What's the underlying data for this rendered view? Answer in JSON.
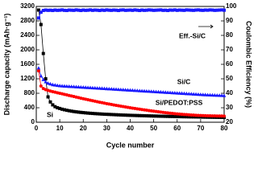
{
  "chart_data": {
    "type": "line",
    "x_label": "Cycle number",
    "y_label": "Discharge capacity (mAh·g⁻¹)",
    "y2_label": "Coulombic Efficiency (%)",
    "xlim": [
      0,
      80
    ],
    "xticks": [
      0,
      10,
      20,
      30,
      40,
      50,
      60,
      70,
      80
    ],
    "ylim": [
      0,
      3200
    ],
    "yticks": [
      0,
      400,
      800,
      1200,
      1600,
      2000,
      2400,
      2800,
      3200
    ],
    "y2lim": [
      20,
      100
    ],
    "y2ticks": [
      20,
      30,
      40,
      50,
      60,
      70,
      80,
      90,
      100
    ],
    "x": [
      1,
      2,
      3,
      4,
      5,
      6,
      7,
      8,
      9,
      10,
      11,
      12,
      13,
      14,
      15,
      16,
      17,
      18,
      19,
      20,
      21,
      22,
      23,
      24,
      25,
      26,
      27,
      28,
      29,
      30,
      31,
      32,
      33,
      34,
      35,
      36,
      37,
      38,
      39,
      40,
      41,
      42,
      43,
      44,
      45,
      46,
      47,
      48,
      49,
      50,
      51,
      52,
      53,
      54,
      55,
      56,
      57,
      58,
      59,
      60,
      61,
      62,
      63,
      64,
      65,
      66,
      67,
      68,
      69,
      70,
      71,
      72,
      73,
      74,
      75,
      76,
      77,
      78,
      79,
      80
    ],
    "series": [
      {
        "name": "Si",
        "color": "#000000",
        "marker": "square",
        "values": [
          3100,
          2700,
          1900,
          1200,
          700,
          560,
          480,
          430,
          400,
          380,
          360,
          345,
          330,
          318,
          306,
          296,
          287,
          279,
          272,
          265,
          259,
          253,
          248,
          243,
          238,
          234,
          230,
          226,
          222,
          219,
          216,
          213,
          210,
          207,
          204,
          201,
          198,
          196,
          193,
          191,
          189,
          187,
          185,
          183,
          181,
          179,
          177,
          175,
          173,
          171,
          170,
          168,
          166,
          165,
          163,
          162,
          160,
          159,
          157,
          156,
          155,
          153,
          152,
          151,
          149,
          148,
          147,
          146,
          145,
          144,
          142,
          141,
          140,
          139,
          138,
          137,
          136,
          135,
          134,
          133
        ]
      },
      {
        "name": "Si/C",
        "color": "#1a1aff",
        "marker": "triangle",
        "values": [
          1500,
          1280,
          1180,
          1120,
          1080,
          1060,
          1040,
          1030,
          1020,
          1010,
          1005,
          1001,
          997,
          993,
          989,
          985,
          981,
          977,
          973,
          969,
          965,
          961,
          957,
          953,
          949,
          945,
          941,
          937,
          933,
          929,
          925,
          921,
          917,
          913,
          909,
          905,
          901,
          897,
          893,
          889,
          885,
          881,
          877,
          873,
          869,
          865,
          861,
          857,
          853,
          849,
          845,
          841,
          837,
          833,
          829,
          825,
          821,
          817,
          813,
          809,
          805,
          801,
          797,
          793,
          789,
          785,
          781,
          777,
          773,
          769,
          765,
          762,
          759,
          756,
          753,
          750,
          747,
          744,
          741,
          738
        ]
      },
      {
        "name": "Si/PEDOT:PSS",
        "color": "#ff0000",
        "marker": "circle",
        "values": [
          1420,
          1000,
          930,
          900,
          880,
          860,
          845,
          830,
          815,
          800,
          785,
          770,
          755,
          740,
          725,
          710,
          695,
          680,
          665,
          650,
          636,
          622,
          608,
          594,
          580,
          567,
          554,
          541,
          528,
          515,
          503,
          491,
          479,
          467,
          455,
          444,
          433,
          422,
          411,
          400,
          390,
          380,
          370,
          360,
          350,
          341,
          332,
          323,
          314,
          305,
          297,
          289,
          281,
          273,
          265,
          258,
          251,
          244,
          237,
          230,
          225,
          220,
          215,
          210,
          205,
          201,
          197,
          193,
          189,
          185,
          183,
          181,
          179,
          177,
          175,
          174,
          173,
          172,
          171,
          170
        ]
      },
      {
        "name": "Eff.-Si/C",
        "color": "#1a1aff",
        "marker": "square",
        "axis": "y2",
        "values": [
          92,
          96,
          97.2,
          97.5,
          97.3,
          97.4,
          97.2,
          97.5,
          97.3,
          97.4,
          97.6,
          97.3,
          97.2,
          97.5,
          97.4,
          97.3,
          97.6,
          97.4,
          97.2,
          97.5,
          97.3,
          97.4,
          97.6,
          97.3,
          97.5,
          97.4,
          97.2,
          97.5,
          97.3,
          97.6,
          97.4,
          97.3,
          97.5,
          97.4,
          97.2,
          97.5,
          97.6,
          97.3,
          97.4,
          97.5,
          97.3,
          97.6,
          97.4,
          97.2,
          97.5,
          97.3,
          97.4,
          97.6,
          97.5,
          97.3,
          97.4,
          97.5,
          97.6,
          97.3,
          97.4,
          97.2,
          97.5,
          97.4,
          97.6,
          97.3,
          97.5,
          97.4,
          97.3,
          97.6,
          97.5,
          97.4,
          97.3,
          97.5,
          97.6,
          97.4,
          97.3,
          97.5,
          97.4,
          97.6,
          97.5,
          97.3,
          97.4,
          97.5,
          97.6,
          97.4
        ]
      }
    ]
  }
}
